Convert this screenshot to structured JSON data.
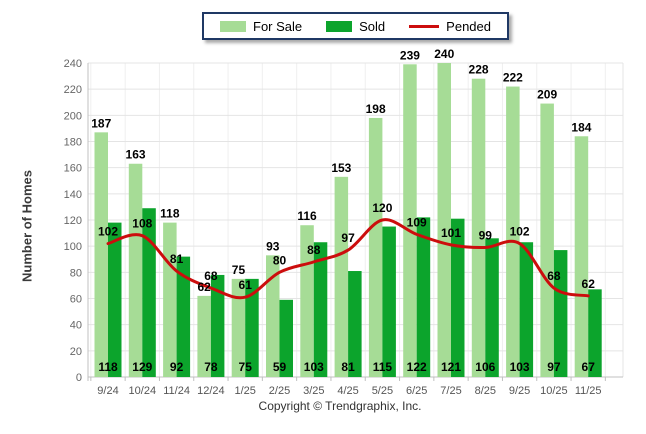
{
  "legend": {
    "items": [
      {
        "label": "For Sale",
        "swatch": "box",
        "color": "#A6DC96"
      },
      {
        "label": "Sold",
        "swatch": "box",
        "color": "#0CA42C"
      },
      {
        "label": "Pended",
        "swatch": "line",
        "color": "#CC0D0D"
      }
    ]
  },
  "footer": {
    "copyright": "Copyright © Trendgraphix, Inc."
  },
  "colors": {
    "for_sale": "#A6DC96",
    "sold": "#0CA42C",
    "pended": "#CC0D0D",
    "grid": "#E4E4E4",
    "grid_vertical": "#EFEFEF",
    "axis": "#C0C0C0",
    "tick_text": "#666666",
    "data_label": "#000000"
  },
  "chart_data": {
    "type": "bar",
    "title": "",
    "xlabel": "",
    "ylabel": "Number of Homes",
    "ylim": [
      0,
      240
    ],
    "ytick_step": 20,
    "grid": true,
    "legend_position": "top",
    "categories": [
      "9/24",
      "10/24",
      "11/24",
      "12/24",
      "1/25",
      "2/25",
      "3/25",
      "4/25",
      "5/25",
      "6/25",
      "7/25",
      "8/25",
      "9/25",
      "10/25",
      "11/25"
    ],
    "series": [
      {
        "name": "For Sale",
        "type": "bar",
        "color": "#A6DC96",
        "values": [
          187,
          163,
          118,
          62,
          75,
          93,
          116,
          153,
          198,
          239,
          240,
          228,
          222,
          209,
          184
        ]
      },
      {
        "name": "Sold",
        "type": "bar",
        "color": "#0CA42C",
        "values": [
          118,
          129,
          92,
          78,
          75,
          59,
          103,
          81,
          115,
          122,
          121,
          106,
          103,
          97,
          67
        ]
      },
      {
        "name": "Pended",
        "type": "line",
        "color": "#CC0D0D",
        "values": [
          102,
          108,
          81,
          68,
          61,
          80,
          88,
          97,
          120,
          109,
          101,
          99,
          102,
          68,
          62
        ]
      }
    ]
  }
}
